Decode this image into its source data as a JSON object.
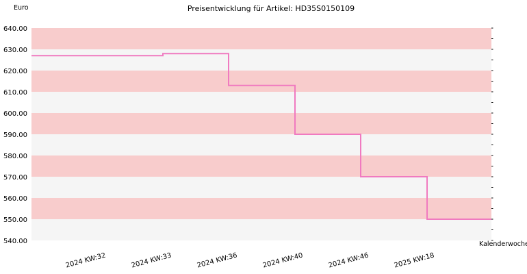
{
  "chart_data": {
    "type": "line",
    "step": true,
    "title": "Preisentwicklung für Artikel: HD35S0150109",
    "ylabel": "Euro",
    "xlabel": "Kalenderwoche",
    "ylim": [
      540,
      640
    ],
    "yticks": [
      "540.00",
      "550.00",
      "560.00",
      "570.00",
      "580.00",
      "590.00",
      "600.00",
      "610.00",
      "620.00",
      "630.00",
      "640.00"
    ],
    "categories": [
      "2024 KW:32",
      "2024 KW:33",
      "2024 KW:36",
      "2024 KW:40",
      "2024 KW:46",
      "2025 KW:18"
    ],
    "series": [
      {
        "values": [
          627,
          628,
          613,
          590,
          570,
          550
        ]
      }
    ],
    "grid": true,
    "colors": {
      "line": "#f07ac0",
      "band_a": "#f8cccc",
      "band_b": "#f5f5f5"
    }
  }
}
